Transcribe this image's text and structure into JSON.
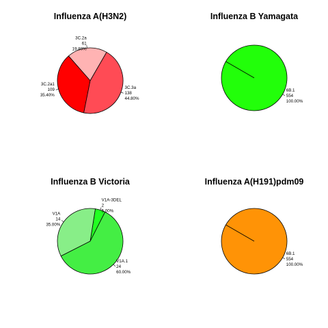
{
  "chart_data": [
    {
      "type": "pie",
      "title": "Influenza A(H3N2)",
      "slices": [
        {
          "label": "3C.2a",
          "count": 61,
          "percent": "19.80%",
          "color": "#ffb3b3"
        },
        {
          "label": "3C.2a1",
          "count": 109,
          "percent": "35.40%",
          "color": "#ff0000"
        },
        {
          "label": "3C.3a",
          "count": 138,
          "percent": "44.80%",
          "color": "#ff4b55"
        }
      ]
    },
    {
      "type": "pie",
      "title": "Influenza B Yamagata",
      "slices": [
        {
          "label": "6B.1",
          "count": 554,
          "percent": "100.00%",
          "color": "#22ff0a"
        }
      ]
    },
    {
      "type": "pie",
      "title": "Influenza B Victoria",
      "slices": [
        {
          "label": "V1A-3DEL",
          "count": 2,
          "percent": "5.00%",
          "color": "#22ff22"
        },
        {
          "label": "V1A",
          "count": 14,
          "percent": "35.00%",
          "color": "#88ee88"
        },
        {
          "label": "V1A.1",
          "count": 24,
          "percent": "60.00%",
          "color": "#44ee44"
        }
      ]
    },
    {
      "type": "pie",
      "title": "Influenza A(H191)pdm09",
      "slices": [
        {
          "label": "6B.1",
          "count": 554,
          "percent": "100.00%",
          "color": "#ff9306"
        }
      ]
    }
  ]
}
